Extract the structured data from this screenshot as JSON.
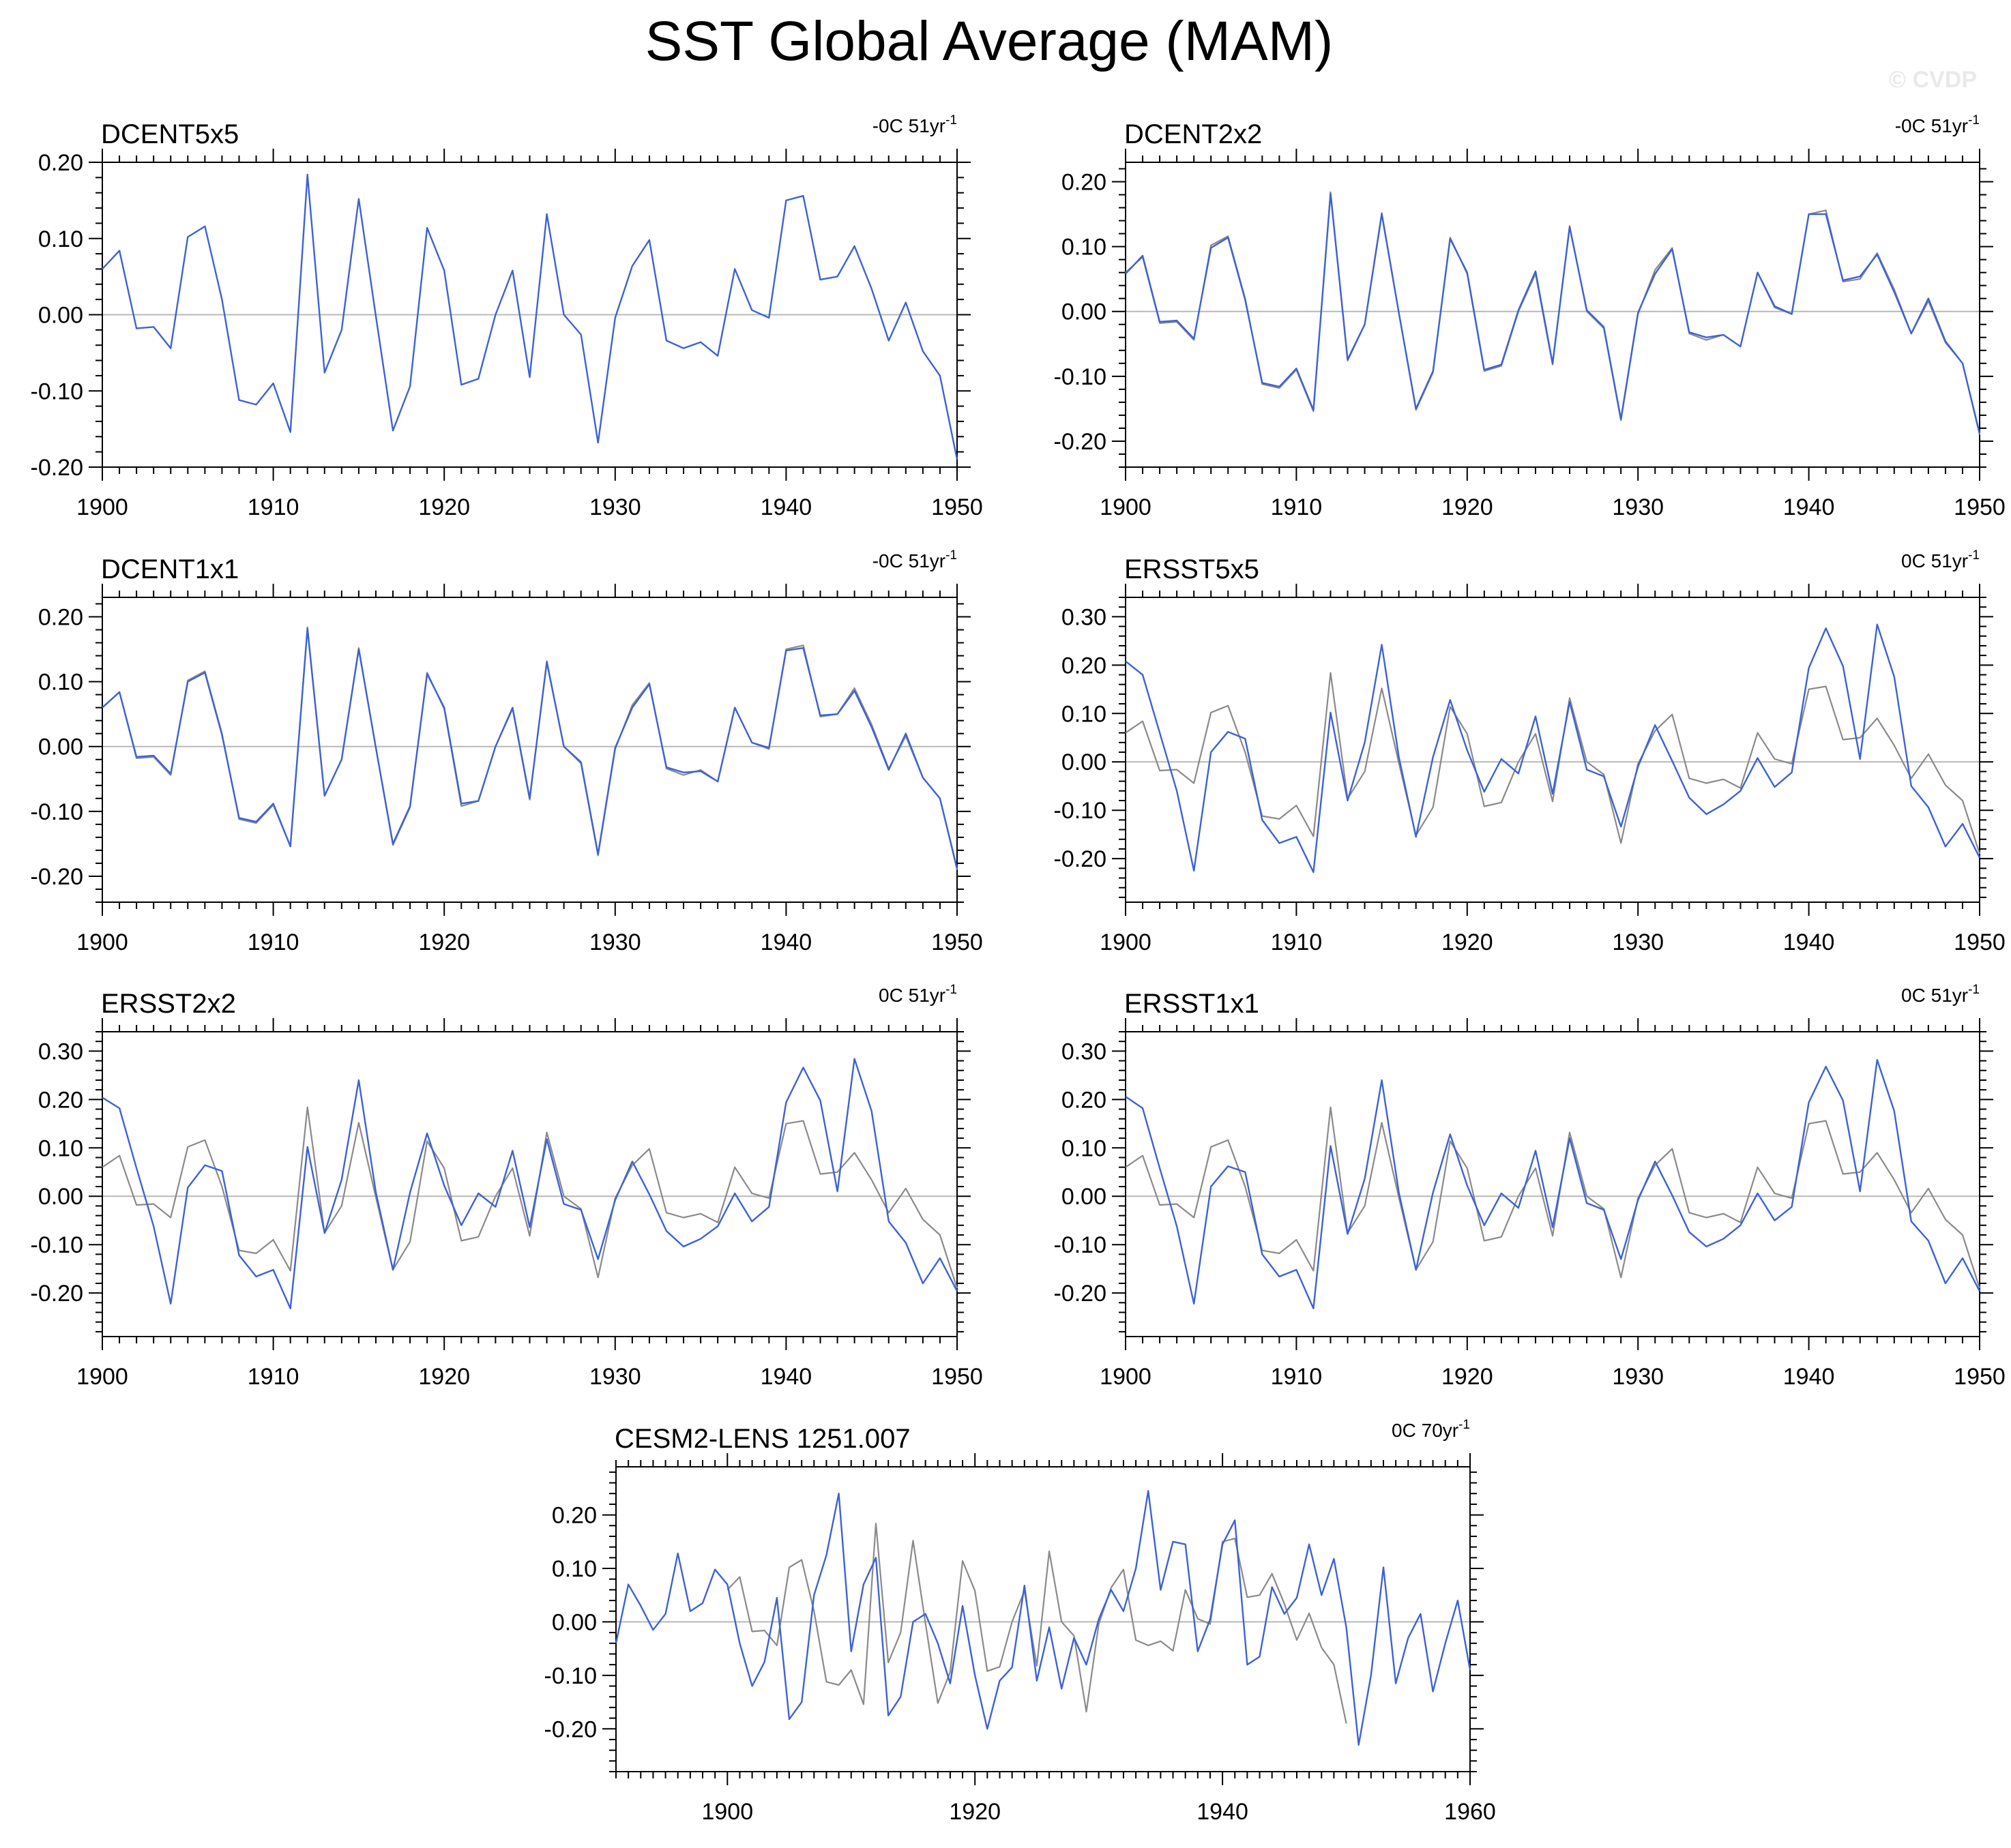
{
  "title": "SST Global Average (MAM)",
  "watermark": "© CVDP",
  "colors": {
    "series": "#3d62d6",
    "reference": "#8a8a8a",
    "zero_line": "#b8b8b8",
    "axis": "#000000"
  },
  "chart_data": [
    {
      "type": "line",
      "name": "DCENT5x5",
      "trend": {
        "value": "-0C 51yr",
        "exponent": "-1"
      },
      "x_start": 1900,
      "xlim": [
        1900,
        1950
      ],
      "ylim": [
        -0.2,
        0.2
      ],
      "x_ticks": [
        1900,
        1910,
        1920,
        1930,
        1940,
        1950
      ],
      "y_ticks": [
        0.2,
        0.1,
        0.0,
        -0.1,
        -0.2
      ],
      "y_tick_labels": [
        "0.20",
        "0.10",
        "0.00",
        "-0.10",
        "-0.20"
      ],
      "series": [
        {
          "name": "DCENT5x5",
          "role": "primary",
          "values": [
            0.06,
            0.084,
            -0.018,
            -0.016,
            -0.044,
            0.102,
            0.116,
            0.02,
            -0.112,
            -0.118,
            -0.09,
            -0.154,
            0.184,
            -0.076,
            -0.02,
            0.152,
            -0.002,
            -0.152,
            -0.094,
            0.114,
            0.058,
            -0.092,
            -0.084,
            0.0,
            0.058,
            -0.082,
            0.132,
            0.0,
            -0.026,
            -0.168,
            -0.004,
            0.064,
            0.098,
            -0.034,
            -0.044,
            -0.036,
            -0.054,
            0.06,
            0.006,
            -0.004,
            0.15,
            0.156,
            0.046,
            0.05,
            0.09,
            0.034,
            -0.034,
            0.016,
            -0.048,
            -0.08,
            -0.19
          ]
        }
      ]
    },
    {
      "type": "line",
      "name": "DCENT2x2",
      "trend": {
        "value": "-0C 51yr",
        "exponent": "-1"
      },
      "x_start": 1900,
      "xlim": [
        1900,
        1950
      ],
      "ylim": [
        -0.24,
        0.23
      ],
      "x_ticks": [
        1900,
        1910,
        1920,
        1930,
        1940,
        1950
      ],
      "y_ticks": [
        0.2,
        0.1,
        0.0,
        -0.1,
        -0.2
      ],
      "y_tick_labels": [
        "0.20",
        "0.10",
        "0.00",
        "-0.10",
        "-0.20"
      ],
      "series": [
        {
          "name": "DCENT5x5",
          "role": "reference",
          "values": [
            0.06,
            0.084,
            -0.018,
            -0.016,
            -0.044,
            0.102,
            0.116,
            0.02,
            -0.112,
            -0.118,
            -0.09,
            -0.154,
            0.184,
            -0.076,
            -0.02,
            0.152,
            -0.002,
            -0.152,
            -0.094,
            0.114,
            0.058,
            -0.092,
            -0.084,
            0.0,
            0.058,
            -0.082,
            0.132,
            0.0,
            -0.026,
            -0.168,
            -0.004,
            0.064,
            0.098,
            -0.034,
            -0.044,
            -0.036,
            -0.054,
            0.06,
            0.006,
            -0.004,
            0.15,
            0.156,
            0.046,
            0.05,
            0.09,
            0.034,
            -0.034,
            0.016,
            -0.048,
            -0.08,
            -0.19
          ]
        },
        {
          "name": "DCENT2x2",
          "role": "primary",
          "values": [
            0.058,
            0.086,
            -0.016,
            -0.014,
            -0.042,
            0.098,
            0.114,
            0.018,
            -0.11,
            -0.116,
            -0.088,
            -0.152,
            0.182,
            -0.074,
            -0.02,
            0.15,
            -0.002,
            -0.15,
            -0.092,
            0.112,
            0.06,
            -0.09,
            -0.082,
            0.002,
            0.062,
            -0.08,
            0.13,
            0.002,
            -0.024,
            -0.166,
            -0.002,
            0.058,
            0.096,
            -0.032,
            -0.04,
            -0.036,
            -0.054,
            0.06,
            0.008,
            -0.004,
            0.15,
            0.15,
            0.048,
            0.054,
            0.088,
            0.03,
            -0.034,
            0.02,
            -0.046,
            -0.08,
            -0.188
          ]
        }
      ]
    },
    {
      "type": "line",
      "name": "DCENT1x1",
      "trend": {
        "value": "-0C 51yr",
        "exponent": "-1"
      },
      "x_start": 1900,
      "xlim": [
        1900,
        1950
      ],
      "ylim": [
        -0.24,
        0.23
      ],
      "x_ticks": [
        1900,
        1910,
        1920,
        1930,
        1940,
        1950
      ],
      "y_ticks": [
        0.2,
        0.1,
        0.0,
        -0.1,
        -0.2
      ],
      "y_tick_labels": [
        "0.20",
        "0.10",
        "0.00",
        "-0.10",
        "-0.20"
      ],
      "series": [
        {
          "name": "DCENT5x5",
          "role": "reference",
          "values": [
            0.06,
            0.084,
            -0.018,
            -0.016,
            -0.044,
            0.102,
            0.116,
            0.02,
            -0.112,
            -0.118,
            -0.09,
            -0.154,
            0.184,
            -0.076,
            -0.02,
            0.152,
            -0.002,
            -0.152,
            -0.094,
            0.114,
            0.058,
            -0.092,
            -0.084,
            0.0,
            0.058,
            -0.082,
            0.132,
            0.0,
            -0.026,
            -0.168,
            -0.004,
            0.064,
            0.098,
            -0.034,
            -0.044,
            -0.036,
            -0.054,
            0.06,
            0.006,
            -0.004,
            0.15,
            0.156,
            0.046,
            0.05,
            0.09,
            0.034,
            -0.034,
            0.016,
            -0.048,
            -0.08,
            -0.19
          ]
        },
        {
          "name": "DCENT1x1",
          "role": "primary",
          "values": [
            0.06,
            0.084,
            -0.016,
            -0.014,
            -0.042,
            0.1,
            0.114,
            0.018,
            -0.11,
            -0.116,
            -0.088,
            -0.154,
            0.182,
            -0.076,
            -0.02,
            0.15,
            -0.002,
            -0.15,
            -0.092,
            0.112,
            0.06,
            -0.088,
            -0.084,
            0.0,
            0.06,
            -0.08,
            0.13,
            0.0,
            -0.024,
            -0.166,
            -0.002,
            0.06,
            0.096,
            -0.032,
            -0.04,
            -0.038,
            -0.054,
            0.06,
            0.006,
            -0.002,
            0.148,
            0.152,
            0.048,
            0.05,
            0.086,
            0.03,
            -0.036,
            0.02,
            -0.048,
            -0.08,
            -0.188
          ]
        }
      ]
    },
    {
      "type": "line",
      "name": "ERSST5x5",
      "trend": {
        "value": "0C 51yr",
        "exponent": "-1"
      },
      "x_start": 1900,
      "xlim": [
        1900,
        1950
      ],
      "ylim": [
        -0.29,
        0.34
      ],
      "x_ticks": [
        1900,
        1910,
        1920,
        1930,
        1940,
        1950
      ],
      "y_ticks": [
        0.3,
        0.2,
        0.1,
        0.0,
        -0.1,
        -0.2
      ],
      "y_tick_labels": [
        "0.30",
        "0.20",
        "0.10",
        "0.00",
        "-0.10",
        "-0.20"
      ],
      "series": [
        {
          "name": "DCENT5x5",
          "role": "reference",
          "values": [
            0.06,
            0.084,
            -0.018,
            -0.016,
            -0.044,
            0.102,
            0.116,
            0.02,
            -0.112,
            -0.118,
            -0.09,
            -0.154,
            0.184,
            -0.076,
            -0.02,
            0.152,
            -0.002,
            -0.152,
            -0.094,
            0.114,
            0.058,
            -0.092,
            -0.084,
            0.0,
            0.058,
            -0.082,
            0.132,
            0.0,
            -0.026,
            -0.168,
            -0.004,
            0.064,
            0.098,
            -0.034,
            -0.044,
            -0.036,
            -0.054,
            0.06,
            0.006,
            -0.004,
            0.15,
            0.156,
            0.046,
            0.05,
            0.09,
            0.034,
            -0.034,
            0.016,
            -0.048,
            -0.08,
            -0.19
          ]
        },
        {
          "name": "ERSST5x5",
          "role": "primary",
          "values": [
            0.208,
            0.18,
            0.06,
            -0.06,
            -0.225,
            0.02,
            0.062,
            0.048,
            -0.12,
            -0.168,
            -0.155,
            -0.228,
            0.102,
            -0.08,
            0.04,
            0.242,
            0.01,
            -0.155,
            0.01,
            0.128,
            0.024,
            -0.062,
            0.006,
            -0.024,
            0.094,
            -0.066,
            0.124,
            -0.016,
            -0.03,
            -0.134,
            -0.01,
            0.076,
            0.002,
            -0.074,
            -0.108,
            -0.088,
            -0.06,
            0.008,
            -0.052,
            -0.022,
            0.194,
            0.276,
            0.198,
            0.006,
            0.284,
            0.176,
            -0.05,
            -0.094,
            -0.175,
            -0.128,
            -0.198
          ]
        }
      ]
    },
    {
      "type": "line",
      "name": "ERSST2x2",
      "trend": {
        "value": "0C 51yr",
        "exponent": "-1"
      },
      "x_start": 1900,
      "xlim": [
        1900,
        1950
      ],
      "ylim": [
        -0.29,
        0.34
      ],
      "x_ticks": [
        1900,
        1910,
        1920,
        1930,
        1940,
        1950
      ],
      "y_ticks": [
        0.3,
        0.2,
        0.1,
        0.0,
        -0.1,
        -0.2
      ],
      "y_tick_labels": [
        "0.30",
        "0.20",
        "0.10",
        "0.00",
        "-0.10",
        "-0.20"
      ],
      "series": [
        {
          "name": "DCENT5x5",
          "role": "reference",
          "values": [
            0.06,
            0.084,
            -0.018,
            -0.016,
            -0.044,
            0.102,
            0.116,
            0.02,
            -0.112,
            -0.118,
            -0.09,
            -0.154,
            0.184,
            -0.076,
            -0.02,
            0.152,
            -0.002,
            -0.152,
            -0.094,
            0.114,
            0.058,
            -0.092,
            -0.084,
            0.0,
            0.058,
            -0.082,
            0.132,
            0.0,
            -0.026,
            -0.168,
            -0.004,
            0.064,
            0.098,
            -0.034,
            -0.044,
            -0.036,
            -0.054,
            0.06,
            0.006,
            -0.004,
            0.15,
            0.156,
            0.046,
            0.05,
            0.09,
            0.034,
            -0.034,
            0.016,
            -0.048,
            -0.08,
            -0.19
          ]
        },
        {
          "name": "ERSST2x2",
          "role": "primary",
          "values": [
            0.204,
            0.182,
            0.058,
            -0.062,
            -0.222,
            0.018,
            0.064,
            0.052,
            -0.122,
            -0.166,
            -0.152,
            -0.232,
            0.102,
            -0.076,
            0.034,
            0.24,
            0.008,
            -0.152,
            0.008,
            0.13,
            0.022,
            -0.06,
            0.006,
            -0.022,
            0.094,
            -0.064,
            0.118,
            -0.016,
            -0.028,
            -0.13,
            -0.008,
            0.072,
            0.004,
            -0.072,
            -0.104,
            -0.088,
            -0.062,
            0.006,
            -0.052,
            -0.022,
            0.194,
            0.266,
            0.198,
            0.01,
            0.284,
            0.176,
            -0.052,
            -0.096,
            -0.18,
            -0.128,
            -0.196
          ]
        }
      ]
    },
    {
      "type": "line",
      "name": "ERSST1x1",
      "trend": {
        "value": "0C 51yr",
        "exponent": "-1"
      },
      "x_start": 1900,
      "xlim": [
        1900,
        1950
      ],
      "ylim": [
        -0.29,
        0.34
      ],
      "x_ticks": [
        1900,
        1910,
        1920,
        1930,
        1940,
        1950
      ],
      "y_ticks": [
        0.3,
        0.2,
        0.1,
        0.0,
        -0.1,
        -0.2
      ],
      "y_tick_labels": [
        "0.30",
        "0.20",
        "0.10",
        "0.00",
        "-0.10",
        "-0.20"
      ],
      "series": [
        {
          "name": "DCENT5x5",
          "role": "reference",
          "values": [
            0.06,
            0.084,
            -0.018,
            -0.016,
            -0.044,
            0.102,
            0.116,
            0.02,
            -0.112,
            -0.118,
            -0.09,
            -0.154,
            0.184,
            -0.076,
            -0.02,
            0.152,
            -0.002,
            -0.152,
            -0.094,
            0.114,
            0.058,
            -0.092,
            -0.084,
            0.0,
            0.058,
            -0.082,
            0.132,
            0.0,
            -0.026,
            -0.168,
            -0.004,
            0.064,
            0.098,
            -0.034,
            -0.044,
            -0.036,
            -0.054,
            0.06,
            0.006,
            -0.004,
            0.15,
            0.156,
            0.046,
            0.05,
            0.09,
            0.034,
            -0.034,
            0.016,
            -0.048,
            -0.08,
            -0.19
          ]
        },
        {
          "name": "ERSST1x1",
          "role": "primary",
          "values": [
            0.206,
            0.182,
            0.058,
            -0.062,
            -0.222,
            0.02,
            0.062,
            0.05,
            -0.12,
            -0.166,
            -0.152,
            -0.232,
            0.104,
            -0.078,
            0.036,
            0.24,
            0.008,
            -0.152,
            0.008,
            0.128,
            0.022,
            -0.06,
            0.006,
            -0.024,
            0.094,
            -0.064,
            0.12,
            -0.014,
            -0.028,
            -0.13,
            -0.008,
            0.072,
            0.002,
            -0.074,
            -0.104,
            -0.088,
            -0.06,
            0.006,
            -0.05,
            -0.022,
            0.194,
            0.268,
            0.198,
            0.01,
            0.282,
            0.176,
            -0.052,
            -0.092,
            -0.18,
            -0.128,
            -0.196
          ]
        }
      ]
    },
    {
      "type": "line",
      "name": "CESM2-LENS 1251.007",
      "trend": {
        "value": "0C 70yr",
        "exponent": "-1"
      },
      "x_start": 1891,
      "xlim": [
        1891,
        1960
      ],
      "ylim": [
        -0.28,
        0.29
      ],
      "x_ticks": [
        1900,
        1920,
        1940,
        1960
      ],
      "y_ticks": [
        0.2,
        0.1,
        0.0,
        -0.1,
        -0.2
      ],
      "y_tick_labels": [
        "0.20",
        "0.10",
        "0.00",
        "-0.10",
        "-0.20"
      ],
      "series": [
        {
          "name": "DCENT5x5",
          "role": "reference",
          "x_start": 1900,
          "values": [
            0.06,
            0.084,
            -0.018,
            -0.016,
            -0.044,
            0.102,
            0.116,
            0.02,
            -0.112,
            -0.118,
            -0.09,
            -0.154,
            0.184,
            -0.076,
            -0.02,
            0.152,
            -0.002,
            -0.152,
            -0.094,
            0.114,
            0.058,
            -0.092,
            -0.084,
            0.0,
            0.058,
            -0.082,
            0.132,
            0.0,
            -0.026,
            -0.168,
            -0.004,
            0.064,
            0.098,
            -0.034,
            -0.044,
            -0.036,
            -0.054,
            0.06,
            0.006,
            -0.004,
            0.15,
            0.156,
            0.046,
            0.05,
            0.09,
            0.034,
            -0.034,
            0.016,
            -0.048,
            -0.08,
            -0.19
          ]
        },
        {
          "name": "CESM2-LENS 1251.007",
          "role": "primary",
          "x_start": 1891,
          "values": [
            -0.04,
            0.07,
            0.03,
            -0.015,
            0.015,
            0.128,
            0.02,
            0.035,
            0.098,
            0.07,
            -0.04,
            -0.12,
            -0.075,
            0.045,
            -0.182,
            -0.15,
            0.05,
            0.125,
            0.24,
            -0.055,
            0.07,
            0.12,
            -0.175,
            -0.14,
            0.0,
            0.015,
            -0.04,
            -0.115,
            0.03,
            -0.1,
            -0.2,
            -0.11,
            -0.085,
            0.068,
            -0.11,
            -0.01,
            -0.125,
            -0.03,
            -0.08,
            0.005,
            0.06,
            0.02,
            0.1,
            0.245,
            0.06,
            0.15,
            0.145,
            -0.055,
            0.005,
            0.145,
            0.19,
            -0.08,
            -0.065,
            0.065,
            0.015,
            0.045,
            0.145,
            0.05,
            0.118,
            -0.01,
            -0.23,
            -0.1,
            0.102,
            -0.115,
            -0.03,
            0.015,
            -0.13,
            -0.04,
            0.04,
            -0.09
          ]
        }
      ]
    }
  ]
}
